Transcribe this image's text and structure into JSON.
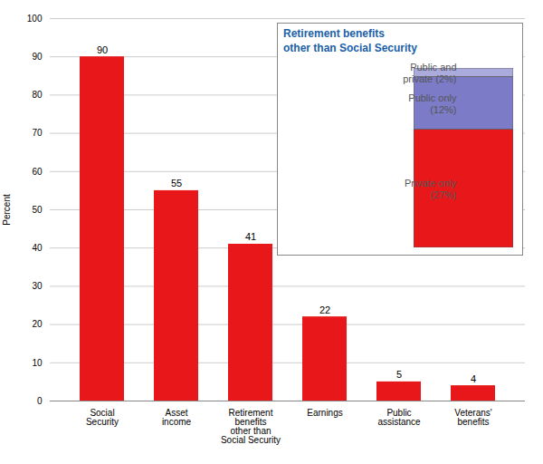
{
  "chart_data": [
    {
      "type": "bar",
      "categories": [
        "Social\nSecurity",
        "Asset\nincome",
        "Retirement\nbenefits\nother than\nSocial Security",
        "Earnings",
        "Public\nassistance",
        "Veterans'\nbenefits"
      ],
      "values": [
        90,
        55,
        41,
        22,
        5,
        4
      ],
      "color": "#e8181a",
      "ylabel": "Percent",
      "ylim": [
        0,
        100
      ],
      "yticks": [
        0,
        10,
        20,
        30,
        40,
        50,
        60,
        70,
        80,
        90,
        100
      ],
      "grid": true,
      "data_labels": true
    },
    {
      "type": "bar",
      "title": "Retirement benefits\nother than Social Security",
      "categories": [
        null
      ],
      "series": [
        {
          "name": "Private only\n(27%)",
          "color": "#e8181a",
          "values": [
            27
          ]
        },
        {
          "name": "Public only\n(12%)",
          "color": "#7b7bc8",
          "values": [
            12
          ]
        },
        {
          "name": "Public and\nprivate (2%)",
          "color": "#aaaadd",
          "values": [
            2
          ]
        }
      ],
      "stacked": true,
      "tick_labels": false,
      "ylim": [
        0,
        41
      ]
    }
  ]
}
